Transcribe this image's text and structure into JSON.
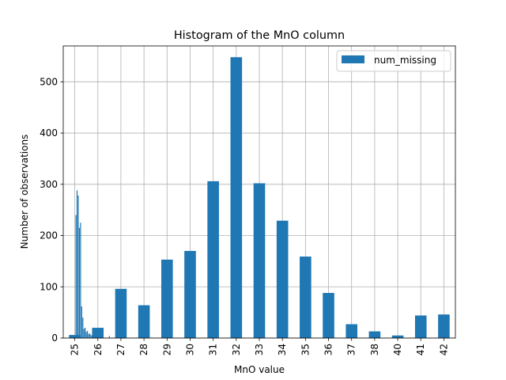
{
  "chart_data": {
    "type": "bar",
    "title": "Histogram of the MnO column",
    "xlabel": "MnO value",
    "ylabel": "Number of observations",
    "ylim": [
      0,
      570
    ],
    "yticks": [
      0,
      100,
      200,
      300,
      400,
      500
    ],
    "grid": true,
    "legend_position": "top-right",
    "bar_color": "#1f77b4",
    "categories": [
      "25",
      "26",
      "27",
      "28",
      "29",
      "30",
      "31",
      "32",
      "33",
      "34",
      "35",
      "36",
      "37",
      "38",
      "40",
      "41",
      "42"
    ],
    "series": [
      {
        "name": "num_missing",
        "values": [
          6,
          20,
          96,
          64,
          153,
          170,
          306,
          548,
          302,
          229,
          159,
          88,
          27,
          13,
          5,
          44,
          46
        ]
      }
    ],
    "detail_bars": {
      "x": [
        25.05,
        25.1,
        25.15,
        25.2,
        25.25,
        25.3,
        25.35,
        25.4,
        25.45,
        25.5,
        25.55,
        25.6,
        25.65,
        25.7,
        25.75,
        25.8,
        25.85,
        25.9,
        25.95,
        26.0,
        26.1,
        26.5
      ],
      "values": [
        240,
        288,
        278,
        215,
        225,
        62,
        40,
        18,
        20,
        12,
        14,
        8,
        9,
        6,
        5,
        4,
        3,
        3,
        2,
        2,
        2,
        4
      ]
    }
  }
}
